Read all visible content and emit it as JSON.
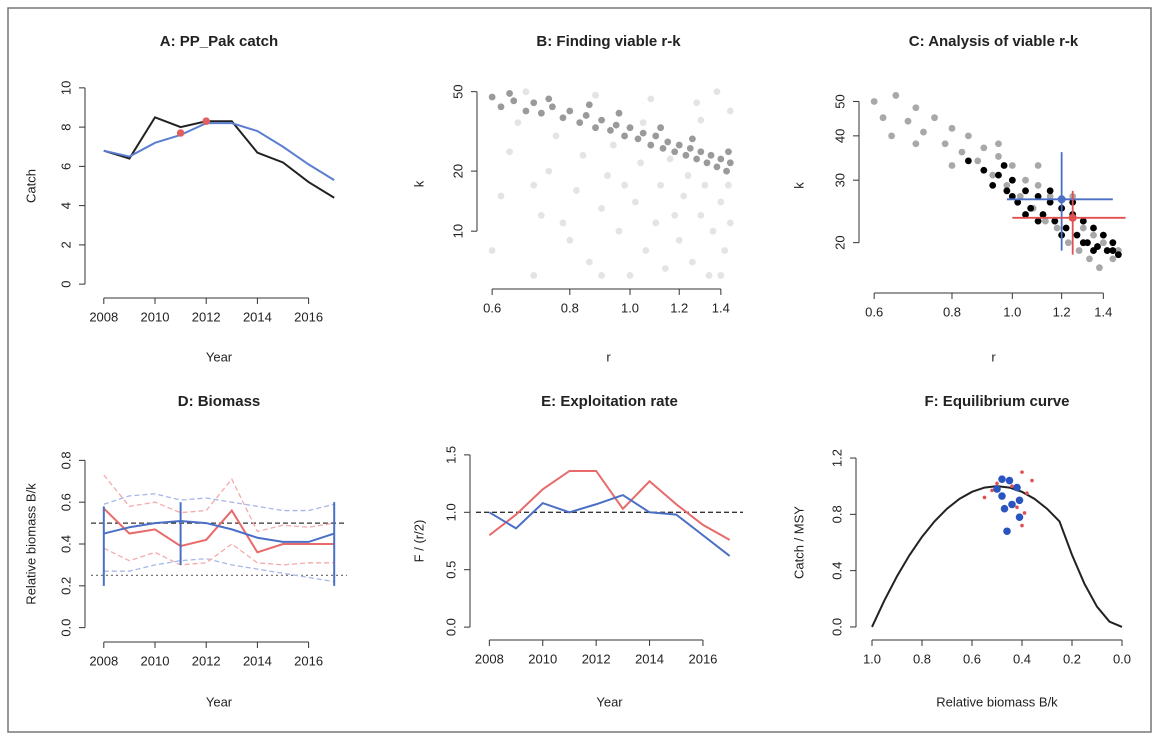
{
  "chart_data": [
    {
      "type": "line",
      "title": "A:  PP_Pak catch",
      "xlabel": "Year",
      "ylabel": "Catch",
      "x": [
        2008,
        2009,
        2010,
        2011,
        2012,
        2013,
        2014,
        2015,
        2016,
        2017
      ],
      "xlim": [
        2007.5,
        2017.5
      ],
      "ylim": [
        -0.4,
        10.4
      ],
      "xticks": [
        2008,
        2010,
        2012,
        2014,
        2016
      ],
      "yticks": [
        0,
        2,
        4,
        6,
        8,
        10
      ],
      "series": [
        {
          "color": "#222222",
          "style": "solid",
          "values": [
            6.8,
            6.4,
            8.5,
            8.0,
            8.3,
            8.3,
            6.7,
            6.2,
            5.2,
            4.4
          ]
        },
        {
          "color": "#5b7fd0",
          "style": "solid",
          "values": [
            6.8,
            6.5,
            7.2,
            7.6,
            8.2,
            8.2,
            7.8,
            7.0,
            6.1,
            5.3
          ]
        },
        {
          "color": "#e06060",
          "style": "points",
          "x": [
            2011,
            2012
          ],
          "values": [
            7.7,
            8.3
          ]
        }
      ]
    },
    {
      "type": "scatter",
      "title": "B: Finding viable r-k",
      "xlabel": "r",
      "ylabel": "k",
      "xlog": true,
      "ylog": true,
      "xlim": [
        0.58,
        1.47
      ],
      "ylim": [
        5.5,
        54
      ],
      "xticks": [
        0.6,
        0.8,
        {
          "value": 1,
          "label": "1.0"
        },
        1.2,
        1.4
      ],
      "yticks": [
        10,
        20,
        50
      ],
      "series": [
        {
          "color": "#e4e4e4",
          "style": "points",
          "x": [
            0.6,
            0.62,
            0.64,
            0.66,
            0.7,
            0.72,
            0.74,
            0.76,
            0.8,
            0.82,
            0.84,
            0.86,
            0.9,
            0.92,
            0.94,
            0.96,
            1.0,
            1.02,
            1.04,
            1.06,
            1.1,
            1.12,
            1.14,
            1.16,
            1.2,
            1.22,
            1.24,
            1.26,
            1.3,
            1.32,
            1.34,
            1.36,
            1.4,
            1.42,
            1.45,
            1.44,
            0.68,
            0.88,
            1.08,
            1.28,
            1.45,
            1.38,
            0.78,
            0.98,
            1.18,
            0.7,
            1.05,
            1.3,
            0.9,
            1.4
          ],
          "values": [
            8,
            15,
            25,
            35,
            6,
            12,
            20,
            30,
            9,
            16,
            24,
            7,
            13,
            19,
            27,
            10,
            6,
            14,
            22,
            8,
            11,
            17,
            6.5,
            23,
            9,
            15,
            19,
            7,
            12,
            17,
            6,
            10,
            14,
            8,
            11,
            17,
            50,
            48,
            46,
            44,
            40,
            50,
            11,
            17,
            12,
            17,
            35,
            36,
            6,
            6
          ]
        },
        {
          "color": "#9a9a9a",
          "style": "points",
          "x": [
            0.6,
            0.62,
            0.65,
            0.68,
            0.7,
            0.72,
            0.75,
            0.78,
            0.8,
            0.83,
            0.85,
            0.88,
            0.9,
            0.93,
            0.95,
            0.98,
            1.0,
            1.03,
            1.05,
            1.08,
            1.1,
            1.13,
            1.15,
            1.18,
            1.2,
            1.23,
            1.25,
            1.28,
            1.3,
            1.33,
            1.35,
            1.38,
            1.4,
            1.43,
            1.45,
            0.64,
            0.74,
            0.86,
            0.96,
            1.12,
            1.26,
            1.44
          ],
          "values": [
            47,
            42,
            45,
            40,
            44,
            39,
            42,
            37,
            40,
            35,
            38,
            33,
            36,
            32,
            34,
            30,
            33,
            29,
            31,
            27,
            30,
            26,
            28,
            25,
            27,
            24,
            26,
            23,
            25,
            22,
            24,
            21,
            23,
            20,
            22,
            49,
            46,
            43,
            39,
            33,
            29,
            25
          ]
        }
      ]
    },
    {
      "type": "scatter",
      "title": "C: Analysis of viable r-k",
      "xlabel": "r",
      "ylabel": "k",
      "xlog": true,
      "ylog": true,
      "xlim": [
        0.58,
        1.5
      ],
      "ylim": [
        15,
        56
      ],
      "xticks": [
        0.6,
        0.8,
        {
          "value": 1,
          "label": "1.0"
        },
        1.2,
        1.4
      ],
      "yticks": [
        20,
        30,
        40,
        50
      ],
      "series": [
        {
          "color": "#a8a8a8",
          "style": "points",
          "x": [
            0.6,
            0.62,
            0.65,
            0.68,
            0.7,
            0.72,
            0.75,
            0.78,
            0.8,
            0.83,
            0.85,
            0.88,
            0.9,
            0.93,
            0.95,
            0.98,
            1.0,
            1.03,
            1.05,
            1.08,
            1.1,
            1.13,
            1.15,
            1.18,
            1.2,
            1.23,
            1.25,
            1.28,
            1.3,
            1.33,
            1.35,
            1.38,
            1.4,
            1.45,
            1.48,
            0.64,
            0.7,
            0.8,
            0.95,
            1.1,
            1.25
          ],
          "values": [
            50,
            45,
            52,
            44,
            48,
            41,
            45,
            38,
            42,
            36,
            40,
            34,
            37,
            31,
            35,
            29,
            33,
            27,
            30,
            25,
            29,
            23,
            27,
            22,
            25,
            20,
            24,
            19,
            22,
            18,
            21,
            17,
            20,
            18,
            19,
            40,
            38,
            33,
            38,
            33,
            27
          ]
        },
        {
          "color": "#000000",
          "style": "points",
          "x": [
            0.9,
            0.93,
            0.95,
            0.98,
            1.0,
            1.02,
            1.05,
            1.07,
            1.1,
            1.12,
            1.15,
            1.17,
            1.2,
            1.22,
            1.25,
            1.27,
            1.3,
            1.32,
            1.35,
            1.37,
            1.4,
            1.42,
            1.45,
            1.48,
            1.0,
            1.1,
            1.2,
            1.3,
            1.15,
            0.97,
            1.05,
            1.25,
            1.35,
            1.45,
            0.85
          ],
          "values": [
            32,
            29,
            31,
            28,
            30,
            26,
            28,
            25,
            27,
            24,
            26,
            23,
            25,
            22,
            24,
            21,
            23,
            20,
            22,
            19.5,
            21,
            19,
            20,
            18.5,
            27,
            23,
            21,
            20,
            28,
            33,
            24,
            26,
            19,
            19,
            34
          ]
        }
      ],
      "estimates": [
        {
          "color": "#4a6fc4",
          "r": 1.2,
          "k": 26.5,
          "r_range": [
            0.98,
            1.45
          ],
          "k_range": [
            19,
            36
          ]
        },
        {
          "color": "#e05050",
          "r": 1.25,
          "k": 23.5,
          "r_range": [
            1.0,
            1.52
          ],
          "k_range": [
            18.5,
            28
          ]
        }
      ]
    },
    {
      "type": "line",
      "title": "D: Biomass",
      "xlabel": "Year",
      "ylabel": "Relative biomass B/k",
      "x": [
        2008,
        2009,
        2010,
        2011,
        2012,
        2013,
        2014,
        2015,
        2016,
        2017
      ],
      "xlim": [
        2007.5,
        2017.5
      ],
      "ylim": [
        -0.04,
        0.84
      ],
      "xticks": [
        2008,
        2010,
        2012,
        2014,
        2016
      ],
      "yticks": [
        {
          "value": 0,
          "label": "0.0"
        },
        0.2,
        0.4,
        0.6,
        0.8
      ],
      "hlines": [
        {
          "value": 0.5,
          "style": "dashed",
          "color": "#333333"
        },
        {
          "value": 0.25,
          "style": "dotted",
          "color": "#777777"
        }
      ],
      "series": [
        {
          "color": "#a8b8e8",
          "style": "dashed",
          "values": [
            0.59,
            0.63,
            0.64,
            0.61,
            0.62,
            0.6,
            0.58,
            0.56,
            0.56,
            0.59
          ]
        },
        {
          "color": "#a8b8e8",
          "style": "dashed",
          "values": [
            0.27,
            0.27,
            0.3,
            0.32,
            0.33,
            0.3,
            0.28,
            0.26,
            0.24,
            0.22
          ]
        },
        {
          "color": "#f5aaaa",
          "style": "dashed",
          "values": [
            0.73,
            0.58,
            0.6,
            0.55,
            0.56,
            0.71,
            0.46,
            0.49,
            0.48,
            0.5
          ]
        },
        {
          "color": "#f5aaaa",
          "style": "dashed",
          "values": [
            0.38,
            0.32,
            0.36,
            0.3,
            0.31,
            0.4,
            0.31,
            0.3,
            0.31,
            0.31
          ]
        },
        {
          "color": "#e86a6a",
          "style": "solid",
          "values": [
            0.57,
            0.45,
            0.47,
            0.39,
            0.42,
            0.56,
            0.36,
            0.4,
            0.4,
            0.4
          ]
        },
        {
          "color": "#4a6fc4",
          "style": "solid",
          "values": [
            0.45,
            0.48,
            0.5,
            0.51,
            0.5,
            0.47,
            0.43,
            0.41,
            0.41,
            0.45
          ]
        }
      ],
      "error_bars": [
        {
          "color": "#4a6fc4",
          "x": 2008,
          "low": 0.2,
          "high": 0.58
        },
        {
          "color": "#4a6fc4",
          "x": 2011,
          "low": 0.3,
          "high": 0.6
        },
        {
          "color": "#4a6fc4",
          "x": 2017,
          "low": 0.2,
          "high": 0.6
        }
      ]
    },
    {
      "type": "line",
      "title": "E: Exploitation rate",
      "xlabel": "Year",
      "ylabel": "F / (r/2)",
      "x": [
        2008,
        2009,
        2010,
        2011,
        2012,
        2013,
        2014,
        2015,
        2016,
        2017
      ],
      "xlim": [
        2007.5,
        2017.5
      ],
      "ylim": [
        -0.06,
        1.56
      ],
      "xticks": [
        2008,
        2010,
        2012,
        2014,
        2016
      ],
      "yticks": [
        {
          "value": 0,
          "label": "0.0"
        },
        0.5,
        {
          "value": 1,
          "label": "1.0"
        },
        1.5
      ],
      "hlines": [
        {
          "value": 1,
          "style": "dashed",
          "color": "#333333"
        }
      ],
      "series": [
        {
          "color": "#e86a6a",
          "style": "solid",
          "values": [
            0.8,
            0.98,
            1.2,
            1.36,
            1.36,
            1.03,
            1.27,
            1.07,
            0.89,
            0.76
          ]
        },
        {
          "color": "#4a6fc4",
          "style": "solid",
          "values": [
            1.0,
            0.86,
            1.08,
            1.0,
            1.07,
            1.15,
            1.0,
            0.98,
            0.8,
            0.62
          ]
        }
      ]
    },
    {
      "type": "line",
      "title": "F: Equilibrium curve",
      "xlabel": "Relative biomass B/k",
      "ylabel": "Catch / MSY",
      "xlim": [
        1.04,
        -0.04
      ],
      "ylim": [
        -0.05,
        1.25
      ],
      "xticks": [
        {
          "value": 1,
          "label": "1.0"
        },
        0.8,
        0.6,
        0.4,
        0.2,
        {
          "value": 0,
          "label": "0.0"
        }
      ],
      "yticks": [
        {
          "value": 0,
          "label": "0.0"
        },
        0.4,
        0.8,
        1.2
      ],
      "series": [
        {
          "color": "#222222",
          "style": "solid",
          "x": [
            1.0,
            0.95,
            0.9,
            0.85,
            0.8,
            0.75,
            0.7,
            0.65,
            0.6,
            0.55,
            0.5,
            0.45,
            0.4,
            0.35,
            0.3,
            0.25,
            0.2,
            0.15,
            0.1,
            0.05,
            0
          ],
          "values": [
            0,
            0.19,
            0.36,
            0.51,
            0.64,
            0.75,
            0.84,
            0.91,
            0.96,
            0.99,
            1.0,
            0.99,
            0.96,
            0.91,
            0.84,
            0.75,
            0.512,
            0.306,
            0.144,
            0.038,
            0
          ]
        },
        {
          "color": "#e05050",
          "style": "small-points",
          "x": [
            0.55,
            0.5,
            0.44,
            0.4,
            0.36,
            0.38,
            0.42,
            0.39,
            0.52,
            0.4
          ],
          "values": [
            0.92,
            1.02,
            1.0,
            1.1,
            1.04,
            0.95,
            0.85,
            0.81,
            0.97,
            0.72
          ]
        },
        {
          "color": "#2a55c0",
          "style": "points",
          "x": [
            0.48,
            0.45,
            0.5,
            0.42,
            0.48,
            0.44,
            0.41,
            0.47,
            0.41,
            0.46
          ],
          "values": [
            1.05,
            1.04,
            0.98,
            0.99,
            0.93,
            0.87,
            0.9,
            0.84,
            0.78,
            0.68
          ]
        }
      ]
    }
  ]
}
